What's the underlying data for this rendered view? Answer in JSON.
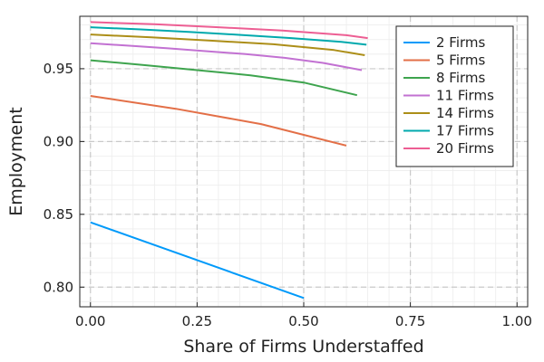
{
  "chart_data": {
    "type": "line",
    "title": "",
    "xlabel": "Share of Firms Understaffed",
    "ylabel": "Employment",
    "xlim": [
      -0.025,
      1.025
    ],
    "ylim": [
      0.7865,
      0.986
    ],
    "xticks": [
      0.0,
      0.25,
      0.5,
      0.75,
      1.0
    ],
    "xtick_labels": [
      "0.00",
      "0.25",
      "0.50",
      "0.75",
      "1.00"
    ],
    "yticks": [
      0.8,
      0.85,
      0.9,
      0.95
    ],
    "ytick_labels": [
      "0.80",
      "0.85",
      "0.90",
      "0.95"
    ],
    "grid": true,
    "minor_grid": true,
    "legend_position": "top-right",
    "series": [
      {
        "name": "2 Firms",
        "color": "#009AFA",
        "x": [
          0.0,
          0.5
        ],
        "y": [
          0.8445,
          0.7925
        ]
      },
      {
        "name": "5 Firms",
        "color": "#E36F47",
        "x": [
          0.0,
          0.2,
          0.4,
          0.6
        ],
        "y": [
          0.9313,
          0.9225,
          0.912,
          0.8972
        ]
      },
      {
        "name": "8 Firms",
        "color": "#3EA44E",
        "x": [
          0.0,
          0.125,
          0.25,
          0.375,
          0.5,
          0.625
        ],
        "y": [
          0.9558,
          0.9525,
          0.949,
          0.9455,
          0.9405,
          0.9318
        ]
      },
      {
        "name": "11 Firms",
        "color": "#C271D2",
        "x": [
          0.0,
          0.091,
          0.182,
          0.273,
          0.364,
          0.455,
          0.545,
          0.636
        ],
        "y": [
          0.9675,
          0.9658,
          0.964,
          0.962,
          0.96,
          0.9575,
          0.954,
          0.949
        ]
      },
      {
        "name": "14 Firms",
        "color": "#AC8E18",
        "x": [
          0.0,
          0.143,
          0.286,
          0.429,
          0.571,
          0.643
        ],
        "y": [
          0.9735,
          0.9715,
          0.9692,
          0.9668,
          0.9628,
          0.9593
        ]
      },
      {
        "name": "17 Firms",
        "color": "#00A9AD",
        "x": [
          0.0,
          0.118,
          0.235,
          0.353,
          0.471,
          0.588,
          0.647
        ],
        "y": [
          0.9785,
          0.977,
          0.9752,
          0.9732,
          0.971,
          0.9685,
          0.9665
        ]
      },
      {
        "name": "20 Firms",
        "color": "#ED5E93",
        "x": [
          0.0,
          0.15,
          0.3,
          0.45,
          0.6,
          0.65
        ],
        "y": [
          0.982,
          0.9805,
          0.9785,
          0.9762,
          0.973,
          0.971
        ]
      }
    ]
  }
}
